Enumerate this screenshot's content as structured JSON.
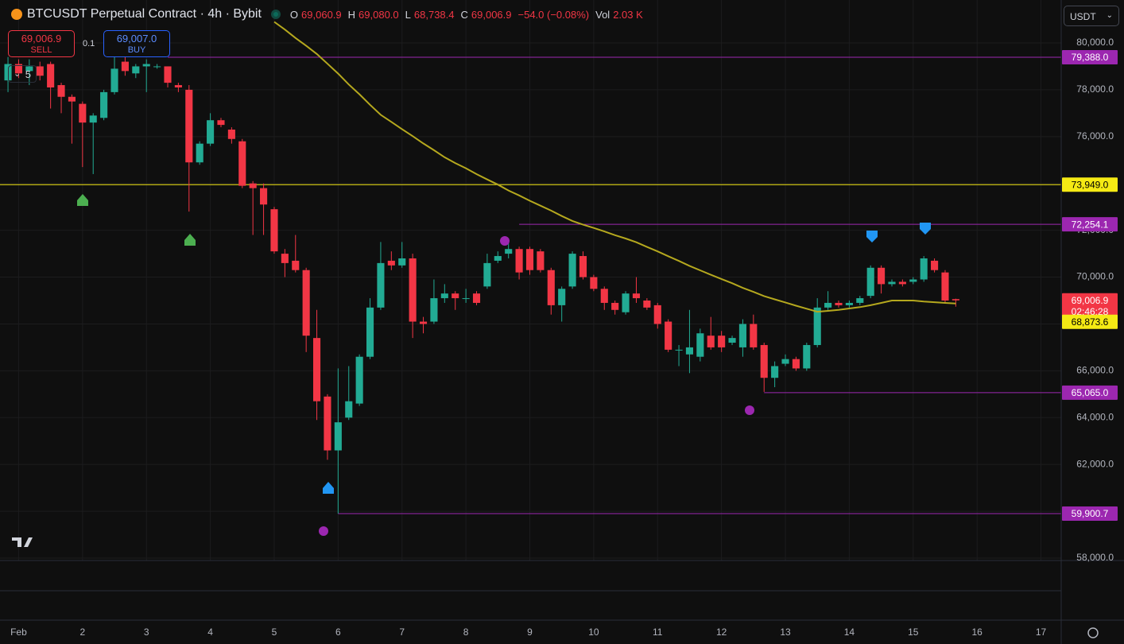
{
  "header": {
    "title": "BTCUSDT Perpetual Contract · 4h · Bybit",
    "ohlc": [
      {
        "key": "O",
        "value": "69,060.9"
      },
      {
        "key": "H",
        "value": "69,080.0"
      },
      {
        "key": "L",
        "value": "68,738.4"
      },
      {
        "key": "C",
        "value": "69,006.9"
      }
    ],
    "change": "−54.0 (−0.08%)",
    "volume_key": "Vol",
    "volume": "2.03 K"
  },
  "trade": {
    "sell_price": "69,006.9",
    "sell": "SELL",
    "quantity": "0.1",
    "buy_price": "69,007.0",
    "buy": "BUY"
  },
  "indicators_count": "5",
  "currency": "USDT",
  "chart_data": {
    "type": "candlestick",
    "up_color": "#22ab94",
    "down_color": "#f23645",
    "grid": true,
    "xlim": [
      -0.75,
      98.9
    ],
    "xticks": [
      {
        "value": 1,
        "label": "Feb"
      },
      {
        "value": 7,
        "label": "2"
      },
      {
        "value": 13,
        "label": "3"
      },
      {
        "value": 19,
        "label": "4"
      },
      {
        "value": 25,
        "label": "5"
      },
      {
        "value": 31,
        "label": "6"
      },
      {
        "value": 37,
        "label": "7"
      },
      {
        "value": 43,
        "label": "8"
      },
      {
        "value": 49,
        "label": "9"
      },
      {
        "value": 55,
        "label": "10"
      },
      {
        "value": 61,
        "label": "11"
      },
      {
        "value": 67,
        "label": "12"
      },
      {
        "value": 73,
        "label": "13"
      },
      {
        "value": 79,
        "label": "14"
      },
      {
        "value": 85,
        "label": "15"
      },
      {
        "value": 91,
        "label": "16"
      },
      {
        "value": 97,
        "label": "17"
      }
    ],
    "ylim": [
      57898,
      81834
    ],
    "yticks": [
      {
        "value": 58000,
        "label": "58,000.0"
      },
      {
        "value": 60000,
        "label": "60,000.0"
      },
      {
        "value": 62000,
        "label": "62,000.0"
      },
      {
        "value": 64000,
        "label": "64,000.0"
      },
      {
        "value": 66000,
        "label": "66,000.0"
      },
      {
        "value": 68000,
        "label": "68,000.0"
      },
      {
        "value": 70000,
        "label": "70,000.0"
      },
      {
        "value": 72000,
        "label": "72,000.0"
      },
      {
        "value": 74000,
        "label": "74,000.0"
      },
      {
        "value": 76000,
        "label": "76,000.0"
      },
      {
        "value": 78000,
        "label": "78,000.0"
      },
      {
        "value": 80000,
        "label": "80,000.0"
      }
    ],
    "open": [
      78400,
      79100,
      78800,
      79000,
      79100,
      78200,
      77700,
      77400,
      76600,
      76800,
      77900,
      79200,
      78700,
      79000,
      79000,
      79000,
      78200,
      78000,
      74900,
      75700,
      76700,
      76300,
      75800,
      74000,
      73800,
      72900,
      71000,
      70700,
      70300,
      67400,
      64900,
      62600,
      64000,
      64600,
      66600,
      68700,
      70700,
      70500,
      70800,
      68100,
      68100,
      69100,
      69300,
      69100,
      69300,
      69600,
      70700,
      71000,
      71200,
      71200,
      71100,
      70300,
      68800,
      69600,
      70900,
      70000,
      69500,
      68900,
      68500,
      69300,
      69000,
      68800,
      68100,
      66900,
      66700,
      66600,
      67500,
      67500,
      67200,
      67000,
      68000,
      67100,
      65700,
      66300,
      66500,
      66100,
      67100,
      68700,
      68900,
      68800,
      68900,
      69200,
      70400,
      69700,
      69800,
      69800,
      69900,
      70700,
      70200,
      69060.9
    ],
    "high": [
      79400,
      79300,
      79300,
      79200,
      79200,
      78300,
      77800,
      77500,
      77000,
      78000,
      79400,
      79400,
      79100,
      79300,
      79100,
      79000,
      78300,
      78200,
      75800,
      77000,
      76800,
      76400,
      75900,
      74100,
      74000,
      73000,
      71200,
      71800,
      70400,
      68600,
      65000,
      66100,
      66200,
      66700,
      69100,
      71500,
      71100,
      71500,
      71000,
      68300,
      69900,
      69700,
      69400,
      69500,
      69400,
      71000,
      71100,
      71500,
      71300,
      71300,
      71200,
      70400,
      69600,
      71100,
      71100,
      70100,
      69600,
      69000,
      69400,
      70000,
      69100,
      68900,
      68200,
      67100,
      68600,
      67800,
      68300,
      67700,
      67500,
      68200,
      68400,
      67200,
      66400,
      66700,
      66600,
      67200,
      69100,
      69400,
      69000,
      69000,
      69200,
      70500,
      70500,
      69900,
      69900,
      70000,
      70900,
      70800,
      70300,
      69080
    ],
    "low": [
      77900,
      78500,
      78200,
      78400,
      77200,
      77000,
      75700,
      74700,
      74400,
      76700,
      77800,
      78600,
      78500,
      77900,
      78900,
      78100,
      77900,
      72800,
      74800,
      75600,
      76400,
      75700,
      73800,
      71800,
      71800,
      71000,
      70000,
      70200,
      66800,
      63900,
      62200,
      59900,
      63900,
      64500,
      66500,
      68600,
      70300,
      70400,
      67400,
      67600,
      68000,
      68900,
      68600,
      68900,
      68800,
      69500,
      70600,
      70800,
      69900,
      70100,
      70200,
      68400,
      68100,
      69500,
      69900,
      69400,
      68600,
      68400,
      68400,
      68900,
      68600,
      67800,
      66800,
      66200,
      65900,
      66400,
      66900,
      66800,
      67100,
      66600,
      66900,
      65100,
      65300,
      66200,
      66000,
      66000,
      67000,
      68600,
      68700,
      68700,
      68800,
      69100,
      69300,
      69600,
      69600,
      69700,
      69800,
      70200,
      68900,
      68738.4
    ],
    "close": [
      79100,
      78700,
      79000,
      78600,
      78100,
      77700,
      77500,
      76600,
      76900,
      77900,
      78900,
      78800,
      79000,
      79100,
      79000,
      78300,
      78100,
      74900,
      75700,
      76700,
      76500,
      75900,
      73900,
      73800,
      73100,
      71100,
      70600,
      70300,
      67500,
      64700,
      62600,
      63800,
      64700,
      66600,
      68700,
      70600,
      70500,
      70800,
      68100,
      68000,
      69100,
      69300,
      69100,
      69100,
      68900,
      70600,
      70900,
      71200,
      70200,
      70300,
      70300,
      68800,
      69500,
      71000,
      70000,
      69500,
      68900,
      68600,
      69300,
      69100,
      68700,
      68000,
      66900,
      66900,
      67000,
      67600,
      67000,
      67000,
      67400,
      68000,
      67000,
      65700,
      66200,
      66500,
      66100,
      67100,
      68700,
      68900,
      68800,
      68900,
      69100,
      70400,
      69700,
      69800,
      69700,
      69900,
      70800,
      70300,
      69000,
      69006.9
    ],
    "moving_average": {
      "color": "#b5a81e",
      "values": [
        null,
        null,
        null,
        null,
        null,
        null,
        null,
        null,
        null,
        null,
        null,
        null,
        null,
        null,
        null,
        null,
        null,
        null,
        null,
        null,
        null,
        null,
        null,
        null,
        null,
        80900,
        80570,
        80210,
        79880,
        79530,
        79110,
        78690,
        78230,
        77810,
        77360,
        76930,
        76630,
        76320,
        76020,
        75710,
        75420,
        75120,
        74870,
        74650,
        74400,
        74170,
        73950,
        73700,
        73490,
        73260,
        73050,
        72840,
        72610,
        72400,
        72240,
        72100,
        71950,
        71790,
        71650,
        71490,
        71290,
        71100,
        70890,
        70690,
        70480,
        70290,
        70100,
        69920,
        69740,
        69540,
        69370,
        69190,
        69050,
        68920,
        68780,
        68650,
        68520,
        68560,
        68600,
        68660,
        68720,
        68800,
        68900,
        69000,
        69000,
        69000,
        68960,
        68930,
        68900,
        68873.6
      ],
      "last_label": "68,873.6",
      "label_color": "#f5ea14"
    },
    "price_lines": [
      {
        "value": 79388,
        "label": "79,388.0",
        "color": "#9c27b0",
        "start": 15
      },
      {
        "value": 73949,
        "label": "73,949.0",
        "color": "#f5ea14",
        "start": -0.75
      },
      {
        "value": 72254.1,
        "label": "72,254.1",
        "color": "#9c27b0",
        "start": 48
      },
      {
        "value": 65065,
        "label": "65,065.0",
        "color": "#9c27b0",
        "start": 71
      },
      {
        "value": 59900.7,
        "label": "59,900.7",
        "color": "#9c27b0",
        "start": 31
      }
    ],
    "last_price": {
      "value": 69006.9,
      "label": "69,006.9",
      "countdown": "02:46:28",
      "color": "#f23645"
    }
  }
}
